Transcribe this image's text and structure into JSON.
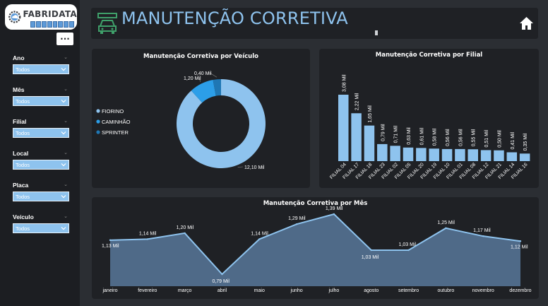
{
  "brand": {
    "logo_text": "FABRIDATA"
  },
  "sidebar": {
    "more_label": "...",
    "filters": [
      {
        "label": "Ano",
        "value": "Todos"
      },
      {
        "label": "Mês",
        "value": "Todos"
      },
      {
        "label": "Filial",
        "value": "Todos"
      },
      {
        "label": "Local",
        "value": "Todos"
      },
      {
        "label": "Placa",
        "value": "Todos"
      },
      {
        "label": "Veículo",
        "value": "Todos"
      }
    ]
  },
  "header": {
    "title": "MANUTENÇÃO CORRETIVA"
  },
  "colors": {
    "accent": "#8ec3ee",
    "dark_blue": "#1f77b4",
    "mid_blue": "#2c9ee8",
    "area": "#4f6a88",
    "sidebar": "#1c1e22",
    "panel": "#1f2125"
  },
  "chart_data": [
    {
      "type": "pie",
      "title": "Manutenção Corretiva por Veículo",
      "categories": [
        "FIORINO",
        "CAMINHÃO",
        "SPRINTER"
      ],
      "values": [
        12.1,
        1.2,
        0.4
      ],
      "labels": [
        "12,10 Mil",
        "1,20 Mil",
        "0,40 Mil"
      ],
      "colors": [
        "#8ec3ee",
        "#2c9ee8",
        "#1f77b4"
      ],
      "legend": "left",
      "donut": true
    },
    {
      "type": "bar",
      "title": "Manutenção Corretiva por Filial",
      "categories": [
        "FILIAL 04",
        "FILIAL 17",
        "FILIAL 18",
        "FILIAL 23",
        "FILIAL 02",
        "FILIAL 05",
        "FILIAL 20",
        "FILIAL 19",
        "FILIAL 10",
        "FILIAL 01",
        "FILIAL 08",
        "FILIAL 12",
        "FILIAL 21",
        "FILIAL 14",
        "FILIAL 16"
      ],
      "values": [
        3.08,
        2.22,
        1.65,
        0.79,
        0.71,
        0.63,
        0.61,
        0.58,
        0.56,
        0.56,
        0.55,
        0.51,
        0.5,
        0.41,
        0.35
      ],
      "labels": [
        "3,08 Mil",
        "2,22 Mil",
        "1,65 Mil",
        "0,79 Mil",
        "0,71 Mil",
        "0,63 Mil",
        "0,61 Mil",
        "0,58 Mil",
        "0,56 Mil",
        "0,56 Mil",
        "0,55 Mil",
        "0,51 Mil",
        "0,50 Mil",
        "0,41 Mil",
        "0,35 Mil"
      ],
      "color": "#8ec3ee",
      "grid": false
    },
    {
      "type": "area",
      "title": "Manutenção Corretiva por Mês",
      "categories": [
        "janeiro",
        "fevereiro",
        "março",
        "abril",
        "maio",
        "junho",
        "julho",
        "agosto",
        "setembro",
        "outubro",
        "novembro",
        "dezembro"
      ],
      "values": [
        1.13,
        1.14,
        1.2,
        0.79,
        1.14,
        1.29,
        1.39,
        1.03,
        1.03,
        1.25,
        1.17,
        1.12
      ],
      "labels": [
        "1,13 Mil",
        "1,14 Mil",
        "1,20 Mil",
        "0,79 Mil",
        "1,14 Mil",
        "1,29 Mil",
        "1,39 Mil",
        "1,03 Mil",
        "1,03 Mil",
        "1,25 Mil",
        "1,17 Mil",
        "1,12 Mil"
      ],
      "color": "#8ec3ee",
      "fill": "#4f6a88",
      "grid": false
    }
  ]
}
